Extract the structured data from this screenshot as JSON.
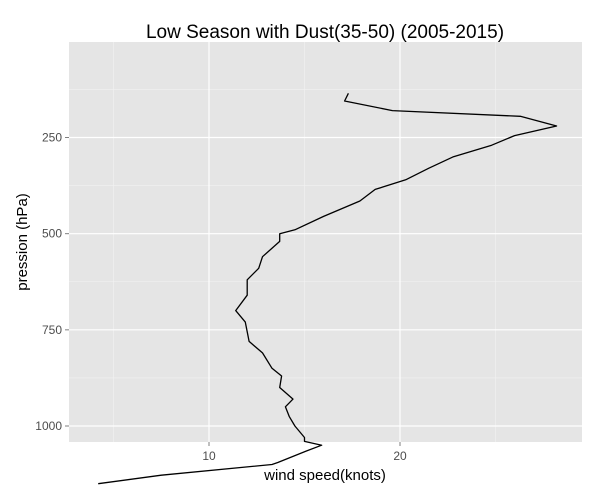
{
  "chart_data": {
    "type": "line",
    "title": "Low Season with Dust(35-50) (2005-2015)",
    "xlabel": "wind speed(knots)",
    "ylabel": "pression (hPa)",
    "xlim": [
      3.0,
      28.5
    ],
    "ylim": [
      1020,
      70
    ],
    "y_reversed": true,
    "grid": true,
    "xticks": [
      10,
      20
    ],
    "xtick_labels": [
      "10",
      "20"
    ],
    "yticks": [
      250,
      500,
      750,
      1000
    ],
    "ytick_labels": [
      "250",
      "500",
      "750",
      "1000"
    ],
    "series": [
      {
        "x": [
          17.3,
          17.1,
          19.6,
          26.3,
          28.2,
          26.0,
          24.8,
          22.8,
          21.5,
          20.3,
          18.7,
          17.9,
          16.0,
          14.5,
          13.7,
          13.7,
          12.8,
          12.6,
          12.0,
          12.0,
          12.0,
          11.4,
          11.9,
          12.1,
          12.8,
          13.3,
          13.8,
          13.7,
          14.4,
          14.0,
          14.2,
          14.5,
          15.0,
          15.0,
          15.9,
          15.1,
          13.6,
          13.3,
          7.5,
          4.2
        ],
        "y": [
          135,
          155,
          180,
          195,
          220,
          245,
          270,
          300,
          330,
          360,
          385,
          415,
          455,
          490,
          500,
          520,
          560,
          590,
          620,
          640,
          660,
          700,
          730,
          780,
          810,
          850,
          870,
          900,
          930,
          950,
          975,
          1000,
          1030,
          1040,
          1050,
          1065,
          1095,
          1100,
          1128,
          1150
        ],
        "pressure_levels_hPa": [
          135,
          155,
          180,
          195,
          220,
          245,
          270,
          300,
          330,
          360,
          385,
          415,
          455,
          490,
          500,
          520,
          560,
          590,
          620,
          640,
          660,
          700,
          730,
          780,
          810,
          850,
          870,
          900,
          930,
          950,
          975,
          1000,
          1030,
          1040,
          1050,
          1065,
          1095,
          1100,
          1128,
          1150
        ]
      }
    ]
  }
}
